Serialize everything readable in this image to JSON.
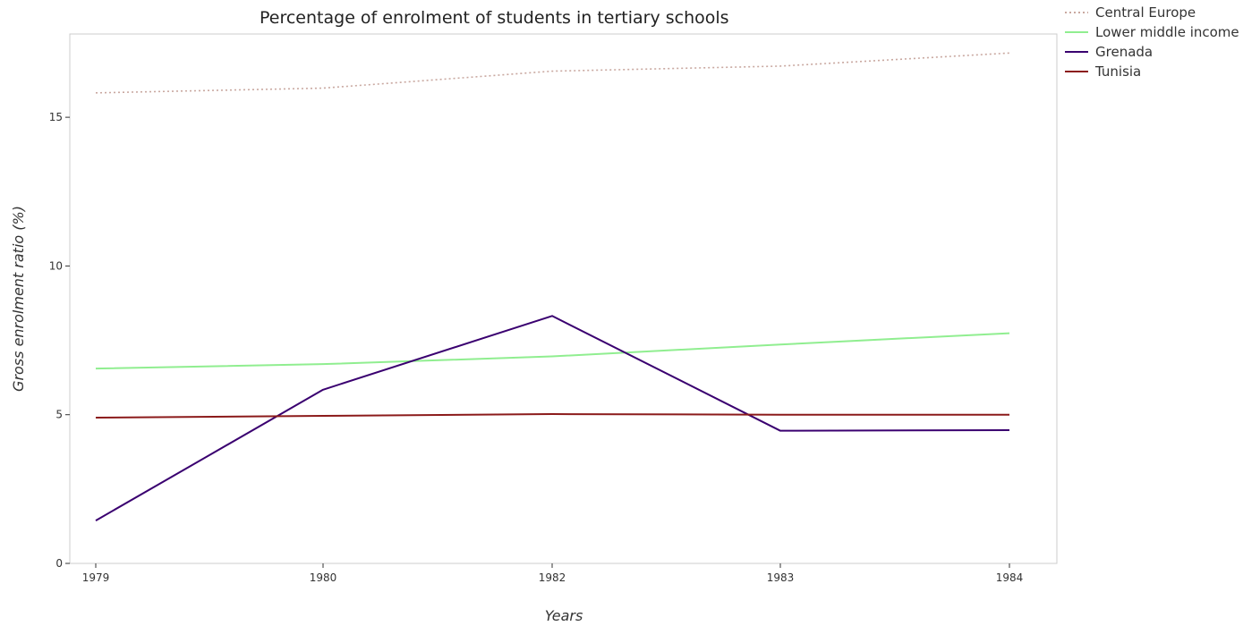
{
  "chart_data": {
    "type": "line",
    "title": "Percentage of enrolment of students in tertiary schools",
    "xlabel": "Years",
    "ylabel": "Gross enrolment ratio (%)",
    "categories": [
      "1979",
      "1980",
      "1982",
      "1983",
      "1984"
    ],
    "ylim": [
      0,
      17.8
    ],
    "yticks": [
      0,
      5,
      10,
      15
    ],
    "grid": false,
    "legend_position": "top-right",
    "series": [
      {
        "name": "Central Europe",
        "color": "#c9a8a0",
        "style": "dotted",
        "values": [
          15.82,
          15.98,
          16.55,
          16.72,
          17.16
        ]
      },
      {
        "name": "Lower middle income",
        "color": "#90ee90",
        "style": "solid",
        "values": [
          6.55,
          6.7,
          6.96,
          7.36,
          7.74
        ]
      },
      {
        "name": "Grenada",
        "color": "#3a0070",
        "style": "solid",
        "values": [
          1.44,
          5.84,
          8.32,
          4.46,
          4.48
        ]
      },
      {
        "name": "Tunisia",
        "color": "#8b1a1a",
        "style": "solid",
        "values": [
          4.9,
          4.96,
          5.02,
          5.0,
          5.0
        ]
      }
    ]
  }
}
